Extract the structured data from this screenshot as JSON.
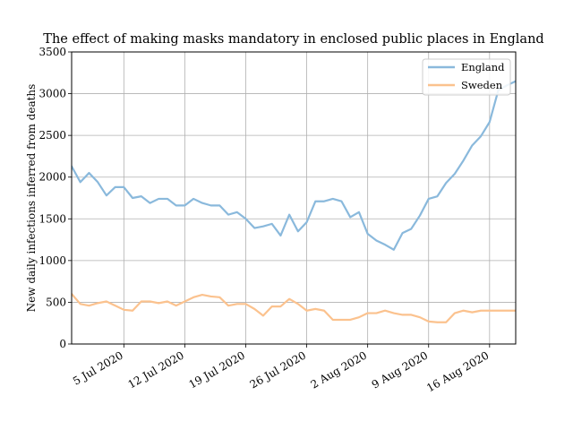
{
  "chart_data": {
    "type": "line",
    "title": "The effect of making masks mandatory in enclosed public places in England",
    "xlabel": "",
    "ylabel": "New daily infections inferred from deaths",
    "ylim": [
      0,
      3500
    ],
    "yticks": [
      0,
      500,
      1000,
      1500,
      2000,
      2500,
      3000,
      3500
    ],
    "xlim": [
      "2020-06-29",
      "2020-08-19"
    ],
    "xticks": [
      {
        "date": "2020-07-05",
        "label": "5 Jul 2020"
      },
      {
        "date": "2020-07-12",
        "label": "12 Jul 2020"
      },
      {
        "date": "2020-07-19",
        "label": "19 Jul 2020"
      },
      {
        "date": "2020-07-26",
        "label": "26 Jul 2020"
      },
      {
        "date": "2020-08-02",
        "label": "2 Aug 2020"
      },
      {
        "date": "2020-08-09",
        "label": "9 Aug 2020"
      },
      {
        "date": "2020-08-16",
        "label": "16 Aug 2020"
      }
    ],
    "grid": true,
    "legend_position": "top-right",
    "x": [
      "2020-06-29",
      "2020-06-30",
      "2020-07-01",
      "2020-07-02",
      "2020-07-03",
      "2020-07-04",
      "2020-07-05",
      "2020-07-06",
      "2020-07-07",
      "2020-07-08",
      "2020-07-09",
      "2020-07-10",
      "2020-07-11",
      "2020-07-12",
      "2020-07-13",
      "2020-07-14",
      "2020-07-15",
      "2020-07-16",
      "2020-07-17",
      "2020-07-18",
      "2020-07-19",
      "2020-07-20",
      "2020-07-21",
      "2020-07-22",
      "2020-07-23",
      "2020-07-24",
      "2020-07-25",
      "2020-07-26",
      "2020-07-27",
      "2020-07-28",
      "2020-07-29",
      "2020-07-30",
      "2020-07-31",
      "2020-08-01",
      "2020-08-02",
      "2020-08-03",
      "2020-08-04",
      "2020-08-05",
      "2020-08-06",
      "2020-08-07",
      "2020-08-08",
      "2020-08-09",
      "2020-08-10",
      "2020-08-11",
      "2020-08-12",
      "2020-08-13",
      "2020-08-14",
      "2020-08-15",
      "2020-08-16",
      "2020-08-17",
      "2020-08-18",
      "2020-08-19"
    ],
    "series": [
      {
        "name": "England",
        "color": "#8ab9dc",
        "values": [
          2130,
          1940,
          2050,
          1940,
          1780,
          1880,
          1880,
          1750,
          1770,
          1690,
          1740,
          1740,
          1660,
          1660,
          1740,
          1690,
          1660,
          1660,
          1550,
          1580,
          1500,
          1390,
          1410,
          1440,
          1300,
          1550,
          1350,
          1460,
          1710,
          1710,
          1740,
          1710,
          1520,
          1580,
          1320,
          1240,
          1190,
          1130,
          1330,
          1380,
          1540,
          1740,
          1770,
          1930,
          2040,
          2200,
          2380,
          2490,
          2660,
          3040,
          3100,
          3150
        ]
      },
      {
        "name": "Sweden",
        "color": "#fbc28e",
        "values": [
          600,
          480,
          460,
          490,
          510,
          460,
          410,
          400,
          510,
          510,
          490,
          510,
          460,
          510,
          560,
          590,
          570,
          560,
          460,
          480,
          480,
          420,
          340,
          450,
          450,
          540,
          480,
          400,
          420,
          400,
          290,
          290,
          290,
          320,
          370,
          370,
          400,
          370,
          350,
          350,
          320,
          270,
          260,
          260,
          370,
          400,
          380,
          400,
          400,
          400,
          400,
          400
        ]
      }
    ]
  }
}
